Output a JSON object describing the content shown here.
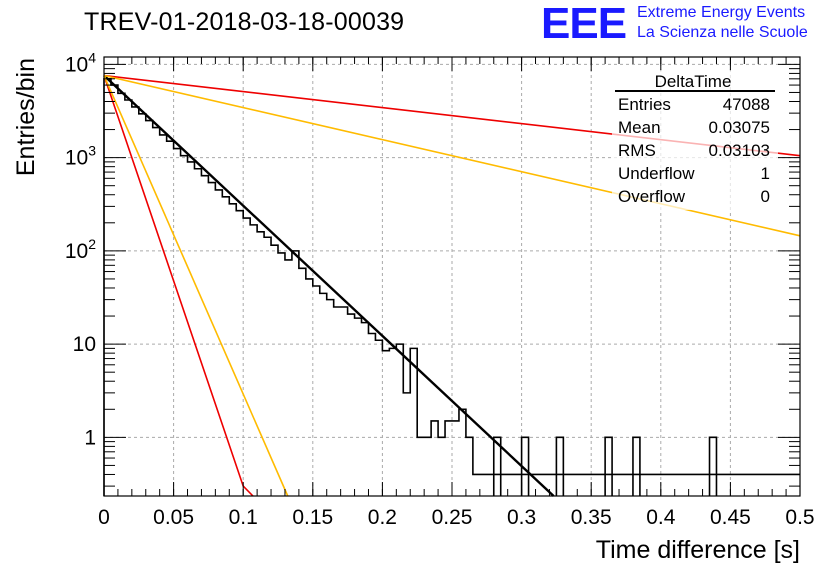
{
  "header": {
    "title": "TREV-01-2018-03-18-00039",
    "logo_text": "EEE",
    "logo_line1": "Extreme Energy Events",
    "logo_line2": "La Scienza nelle Scuole",
    "logo_color": "#1a1aff"
  },
  "stats_box": {
    "name": "DeltaTime",
    "rows": [
      {
        "label": "Entries",
        "value": "47088"
      },
      {
        "label": "Mean",
        "value": "0.03075"
      },
      {
        "label": "RMS",
        "value": "0.03103"
      },
      {
        "label": "Underflow",
        "value": "1"
      },
      {
        "label": "Overflow",
        "value": "0"
      }
    ]
  },
  "chart_data": {
    "type": "histogram",
    "title": "TREV-01-2018-03-18-00039",
    "xlabel": "Time difference [s]",
    "ylabel": "Entries/bin",
    "xlim": [
      0,
      0.5
    ],
    "ylim": [
      0.235,
      12000
    ],
    "yscale": "log",
    "grid": true,
    "x_ticks": [
      0,
      0.05,
      0.1,
      0.15,
      0.2,
      0.25,
      0.3,
      0.35,
      0.4,
      0.45,
      0.5
    ],
    "x_tick_labels": [
      "0",
      "0.05",
      "0.1",
      "0.15",
      "0.2",
      "0.25",
      "0.3",
      "0.35",
      "0.4",
      "0.45",
      "0.5"
    ],
    "y_ticks": [
      1,
      10,
      100,
      1000,
      10000
    ],
    "y_tick_labels": [
      "1",
      "10",
      "10^2",
      "10^3",
      "10^4"
    ],
    "histogram": {
      "name": "DeltaTime",
      "color": "#000000",
      "bin_width": 0.005,
      "counts": [
        7000,
        6000,
        4900,
        4150,
        3500,
        2950,
        2500,
        2100,
        1750,
        1500,
        1250,
        1050,
        900,
        760,
        640,
        540,
        450,
        380,
        320,
        270,
        225,
        190,
        160,
        140,
        115,
        95,
        80,
        100,
        65,
        50,
        42,
        35,
        30,
        25,
        25,
        21,
        19,
        17,
        13,
        11,
        8.5,
        9,
        10,
        3,
        9,
        1,
        1,
        1.5,
        1,
        1.5,
        1.5,
        2,
        1,
        0.4,
        0.4,
        0.4,
        0.4,
        0.4,
        0.4,
        0.4,
        0.4,
        0.4,
        0.4,
        0.4,
        0.4,
        0.4,
        0.4,
        0.4,
        0.4,
        0.4,
        0.4,
        0.4,
        0.4,
        0.4,
        0.4,
        0.4,
        0.4,
        0.4,
        0.4,
        0.4,
        0.4,
        0.4,
        0.4,
        0.4,
        0.4,
        0.4,
        0.4,
        0.4,
        0.4,
        0.4,
        0.4,
        0.4,
        0.4,
        0.4,
        0.4,
        0.4,
        0.4,
        0.4,
        0.4,
        0.4
      ],
      "spikes": [
        {
          "x0": 0.28,
          "x1": 0.285,
          "value": 1
        },
        {
          "x0": 0.3,
          "x1": 0.305,
          "value": 1
        },
        {
          "x0": 0.325,
          "x1": 0.33,
          "value": 1
        },
        {
          "x0": 0.36,
          "x1": 0.365,
          "value": 1
        },
        {
          "x0": 0.38,
          "x1": 0.385,
          "value": 1
        },
        {
          "x0": 0.435,
          "x1": 0.44,
          "value": 1
        }
      ]
    },
    "fits": [
      {
        "color": "#000000",
        "width": 2.4,
        "points": [
          [
            0,
            7600
          ],
          [
            0.323,
            0.235
          ]
        ]
      },
      {
        "color": "#ee0000",
        "width": 1.6,
        "points": [
          [
            0,
            7600
          ],
          [
            0.1,
            0.3
          ],
          [
            0.107,
            0.235
          ]
        ]
      },
      {
        "color": "#ffbb00",
        "width": 1.6,
        "points": [
          [
            0,
            7600
          ],
          [
            0.132,
            0.235
          ]
        ]
      },
      {
        "color": "#ee0000",
        "width": 1.6,
        "points": [
          [
            0,
            7600
          ],
          [
            0.5,
            1050
          ]
        ]
      },
      {
        "color": "#ffbb00",
        "width": 1.6,
        "points": [
          [
            0,
            7600
          ],
          [
            0.5,
            145
          ]
        ]
      }
    ]
  }
}
